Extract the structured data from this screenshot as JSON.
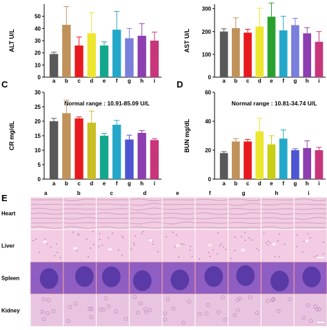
{
  "panel_letters": {
    "C": "C",
    "D": "D",
    "E": "E"
  },
  "chart_data": [
    {
      "type": "bar",
      "title": "",
      "ylabel": "ALT U/L",
      "xlabel": "",
      "categories": [
        "a",
        "b",
        "c",
        "d",
        "e",
        "f",
        "g",
        "h",
        "i"
      ],
      "values": [
        19,
        43,
        26,
        36,
        26,
        39,
        32,
        34,
        30
      ],
      "errors": [
        1.5,
        15,
        7,
        17,
        3,
        15,
        8,
        10,
        7
      ],
      "ylim": [
        0,
        60
      ],
      "yticks": [
        0,
        10,
        20,
        30,
        40,
        50
      ],
      "colors": [
        "#595959",
        "#c0925a",
        "#e8191e",
        "#ece62e",
        "#13a88e",
        "#23a8c9",
        "#7a7fdc",
        "#8d3eb0",
        "#c8357a"
      ]
    },
    {
      "type": "bar",
      "title": "",
      "ylabel": "AST U/L",
      "xlabel": "",
      "categories": [
        "a",
        "b",
        "c",
        "d",
        "e",
        "f",
        "g",
        "h",
        "i"
      ],
      "values": [
        200,
        215,
        195,
        222,
        265,
        205,
        228,
        192,
        155
      ],
      "errors": [
        12,
        45,
        15,
        80,
        60,
        62,
        30,
        25,
        45
      ],
      "ylim": [
        0,
        320
      ],
      "yticks": [
        0,
        100,
        200,
        300
      ],
      "colors": [
        "#595959",
        "#c0925a",
        "#e8191e",
        "#ece62e",
        "#2aa12e",
        "#23a8c9",
        "#7a7fdc",
        "#8d3eb0",
        "#c8357a"
      ]
    },
    {
      "type": "bar",
      "title": "Normal range : 10.91-85.09 U/L",
      "ylabel": "CR mg/dL",
      "xlabel": "",
      "categories": [
        "a",
        "b",
        "c",
        "d",
        "e",
        "f",
        "g",
        "h",
        "i"
      ],
      "values": [
        20,
        22.8,
        21,
        19.5,
        15,
        18.8,
        13.7,
        16,
        13.5
      ],
      "errors": [
        1,
        4.5,
        0.5,
        4,
        0.8,
        1.5,
        1.5,
        0.8,
        0.5
      ],
      "ylim": [
        0,
        30
      ],
      "yticks": [
        0,
        5,
        10,
        15,
        20,
        25,
        30
      ],
      "colors": [
        "#595959",
        "#c0925a",
        "#e8191e",
        "#c9be24",
        "#13a88e",
        "#23a8c9",
        "#4d55d2",
        "#8d3eb0",
        "#c8357a"
      ]
    },
    {
      "type": "bar",
      "title": "Normal range : 10.81-34.74 U/L",
      "ylabel": "BUN mg/dL",
      "xlabel": "",
      "categories": [
        "a",
        "b",
        "c",
        "d",
        "e",
        "f",
        "g",
        "h",
        "i"
      ],
      "values": [
        18,
        26,
        26,
        33,
        24,
        28,
        20,
        21.5,
        20
      ],
      "errors": [
        1,
        2,
        1.5,
        9,
        6,
        6,
        1,
        5,
        2
      ],
      "ylim": [
        0,
        60
      ],
      "yticks": [
        0,
        20,
        40,
        60
      ],
      "colors": [
        "#595959",
        "#c0925a",
        "#e8191e",
        "#ece62e",
        "#c9cf12",
        "#23a8c9",
        "#4d55d2",
        "#8d3eb0",
        "#c8357a"
      ]
    }
  ],
  "histology": {
    "column_labels": [
      "a",
      "b",
      "c",
      "d",
      "e",
      "f",
      "g",
      "h",
      "i"
    ],
    "rows": [
      {
        "label": "Heart",
        "tissue": "heart",
        "color": "#f0cde0"
      },
      {
        "label": "Liver",
        "tissue": "liver",
        "color": "#f3cbe2"
      },
      {
        "label": "Spleen",
        "tissue": "spleen",
        "color": "#8f5ec2"
      },
      {
        "label": "Kidney",
        "tissue": "kidney",
        "color": "#e8c4e0"
      }
    ]
  }
}
